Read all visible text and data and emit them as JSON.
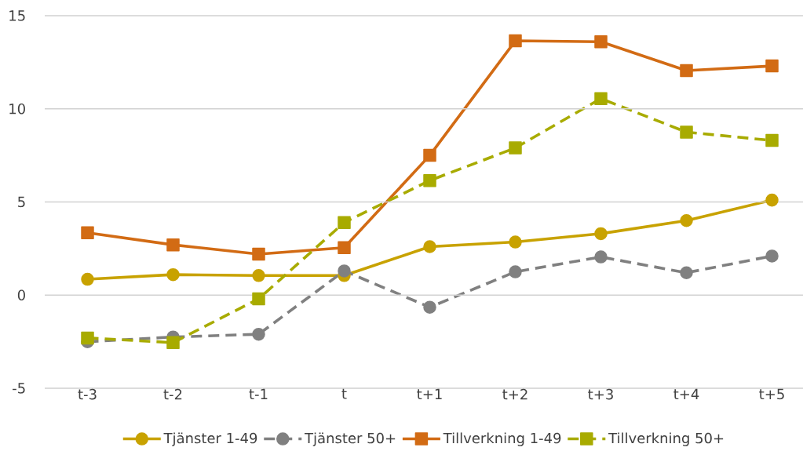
{
  "chart_data": {
    "type": "line",
    "categories": [
      "t-3",
      "t-2",
      "t-1",
      "t",
      "t+1",
      "t+2",
      "t+3",
      "t+4",
      "t+5"
    ],
    "series": [
      {
        "name": "Tjänster 1-49",
        "color": "#c8a200",
        "marker": "circle",
        "line_style": "solid",
        "values": [
          0.85,
          1.1,
          1.05,
          1.05,
          2.6,
          2.85,
          3.3,
          4.0,
          5.1
        ]
      },
      {
        "name": "Tjänster 50+",
        "color": "#808080",
        "marker": "circle",
        "line_style": "dashed",
        "values": [
          -2.5,
          -2.25,
          -2.1,
          1.3,
          -0.65,
          1.25,
          2.05,
          1.2,
          2.1
        ]
      },
      {
        "name": "Tillverkning 1-49",
        "color": "#d26b14",
        "marker": "square",
        "line_style": "solid",
        "values": [
          3.35,
          2.7,
          2.2,
          2.55,
          7.5,
          13.65,
          13.6,
          12.05,
          12.3
        ]
      },
      {
        "name": "Tillverkning 50+",
        "color": "#a8ab00",
        "marker": "square",
        "line_style": "dashed",
        "values": [
          -2.3,
          -2.55,
          -0.2,
          3.9,
          6.15,
          7.9,
          10.55,
          8.75,
          8.3
        ]
      }
    ],
    "ylim": [
      -5,
      15
    ],
    "yticks": [
      -5,
      0,
      5,
      10,
      15
    ],
    "grid": "y",
    "legend": "bottom"
  }
}
